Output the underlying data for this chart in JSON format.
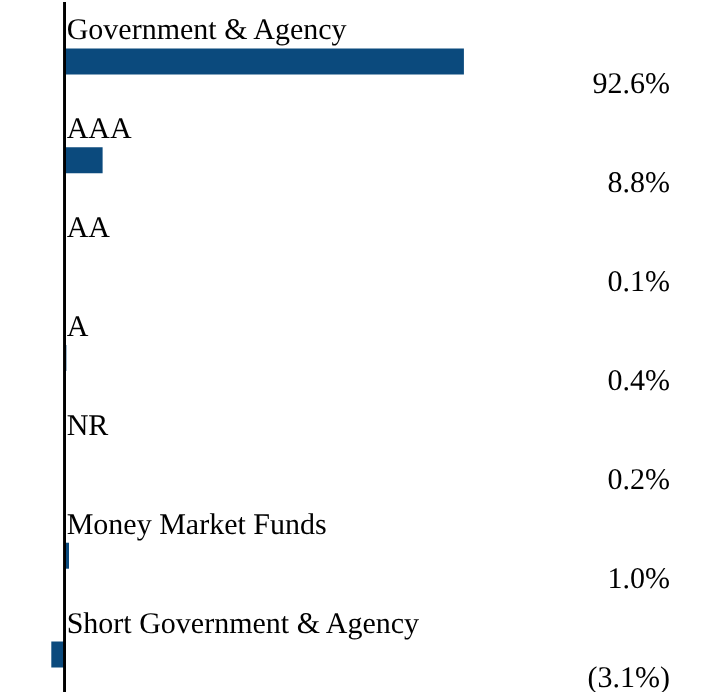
{
  "chart_data": {
    "type": "bar",
    "orientation": "horizontal",
    "categories": [
      "Government & Agency",
      "AAA",
      "AA",
      "A",
      "NR",
      "Money Market Funds",
      "Short Government & Agency"
    ],
    "values": [
      92.6,
      8.8,
      0.1,
      0.4,
      0.2,
      1.0,
      -3.1
    ],
    "color": "#0b4a7d",
    "value_labels": [
      "92.6%",
      "8.8%",
      "0.1%",
      "0.4%",
      "0.2%",
      "1.0%",
      "(3.1%)"
    ],
    "xlim": [
      -15,
      152
    ]
  }
}
